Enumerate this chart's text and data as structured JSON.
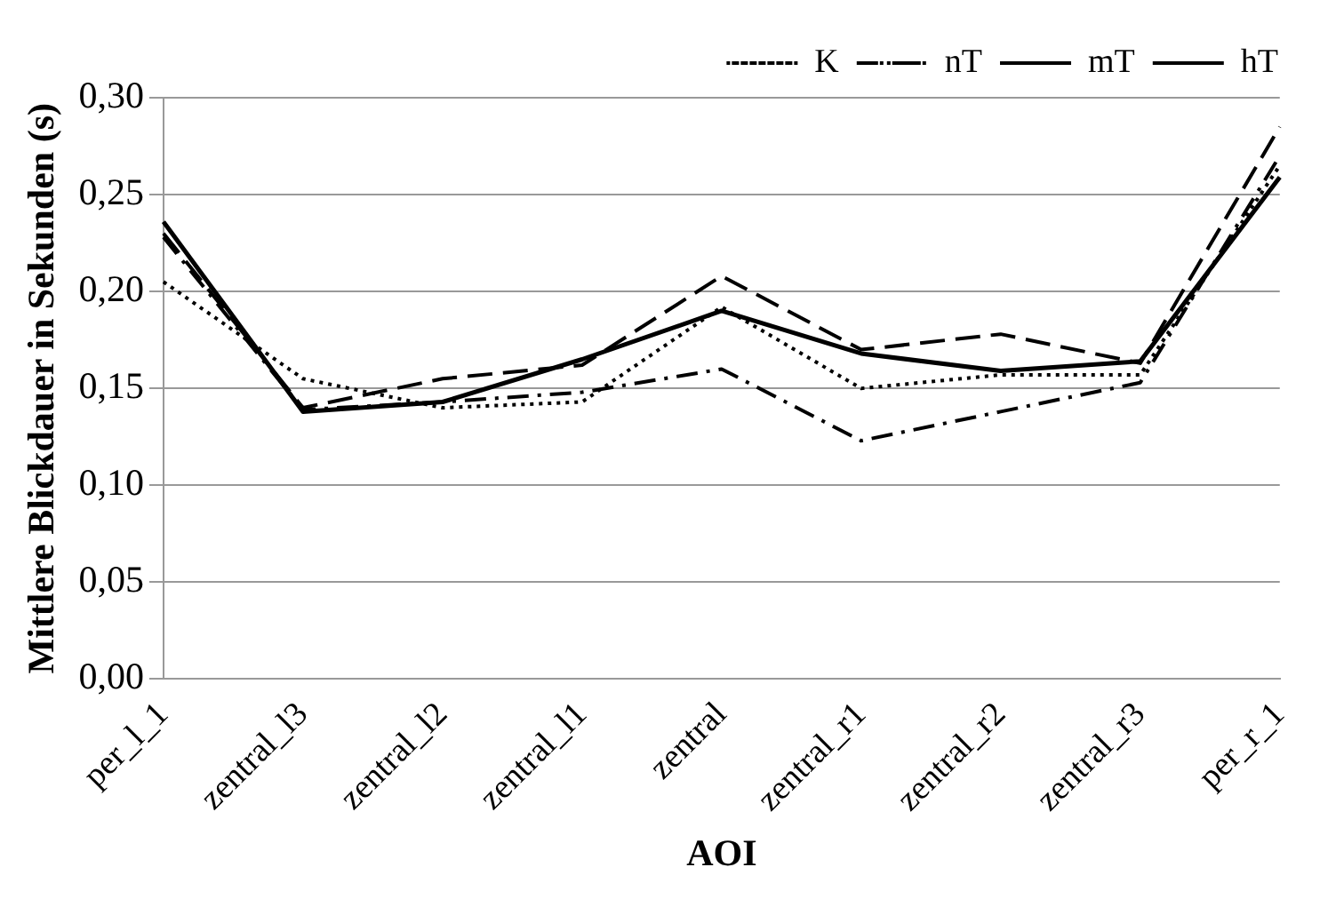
{
  "chart_data": {
    "type": "line",
    "xlabel": "AOI",
    "ylabel": "Mittlere Blickdauer in Sekunden (s)",
    "categories": [
      "per_l_1",
      "zentral_l3",
      "zentral_l2",
      "zentral_l1",
      "zentral",
      "zentral_r1",
      "zentral_r2",
      "zentral_r3",
      "per_r_1"
    ],
    "series": [
      {
        "name": "K",
        "color": "#000000",
        "line_style": "dotted",
        "values": [
          0.205,
          0.155,
          0.14,
          0.143,
          0.192,
          0.15,
          0.157,
          0.157,
          0.265
        ]
      },
      {
        "name": "nT",
        "color": "#000000",
        "line_style": "dashdot",
        "values": [
          0.228,
          0.139,
          0.143,
          0.148,
          0.16,
          0.123,
          0.138,
          0.153,
          0.27
        ]
      },
      {
        "name": "mT",
        "color": "#000000",
        "line_style": "dashed",
        "values": [
          0.23,
          0.14,
          0.155,
          0.162,
          0.208,
          0.17,
          0.178,
          0.163,
          0.285
        ]
      },
      {
        "name": "hT",
        "color": "#000000",
        "line_style": "solid",
        "values": [
          0.236,
          0.138,
          0.143,
          0.165,
          0.19,
          0.168,
          0.159,
          0.164,
          0.259
        ]
      }
    ],
    "ylim": [
      0,
      0.3
    ],
    "yticks": [
      {
        "value": 0,
        "label": "0,00"
      },
      {
        "value": 0.05,
        "label": "0,05"
      },
      {
        "value": 0.1,
        "label": "0,10"
      },
      {
        "value": 0.15,
        "label": "0,15"
      },
      {
        "value": 0.2,
        "label": "0,20"
      },
      {
        "value": 0.25,
        "label": "0,25"
      },
      {
        "value": 0.3,
        "label": "0,30"
      }
    ],
    "grid": "y",
    "legend": "top right",
    "marker": "none"
  }
}
